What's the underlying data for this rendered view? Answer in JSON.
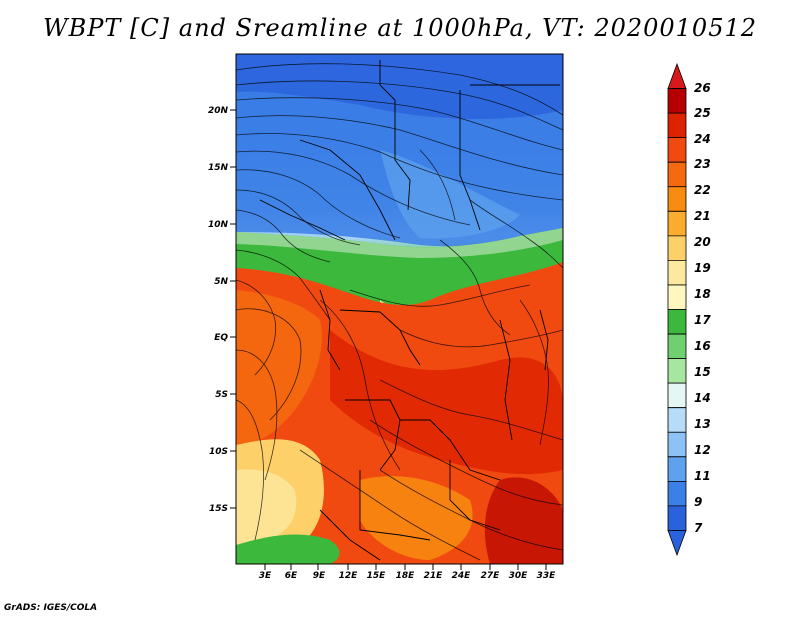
{
  "title": "WBPT [C] and Sreamline at 1000hPa, VT: 2020010512",
  "footer": "GrADS: IGES/COLA",
  "map": {
    "lat_labels": [
      "20N",
      "15N",
      "10N",
      "5N",
      "EQ",
      "5S",
      "10S",
      "15S"
    ],
    "lon_labels": [
      "3E",
      "6E",
      "9E",
      "12E",
      "15E",
      "18E",
      "21E",
      "24E",
      "27E",
      "30E",
      "33E"
    ]
  },
  "colorbar": {
    "labels": [
      "26",
      "25",
      "24",
      "23",
      "22",
      "21",
      "20",
      "19",
      "18",
      "17",
      "16",
      "15",
      "14",
      "13",
      "12",
      "11",
      "9",
      "7"
    ],
    "colors": [
      "#d7191c",
      "#b60000",
      "#dd2200",
      "#f04a10",
      "#f56a10",
      "#f88c10",
      "#fbad30",
      "#fdd06a",
      "#fce9a0",
      "#fff7c0",
      "#3cb83c",
      "#6ed06e",
      "#a6e6a0",
      "#e4f7f4",
      "#b6dcf8",
      "#8cc2f5",
      "#5ea2ee",
      "#3c7fe6",
      "#2a62dc",
      "#2a62dc"
    ]
  }
}
